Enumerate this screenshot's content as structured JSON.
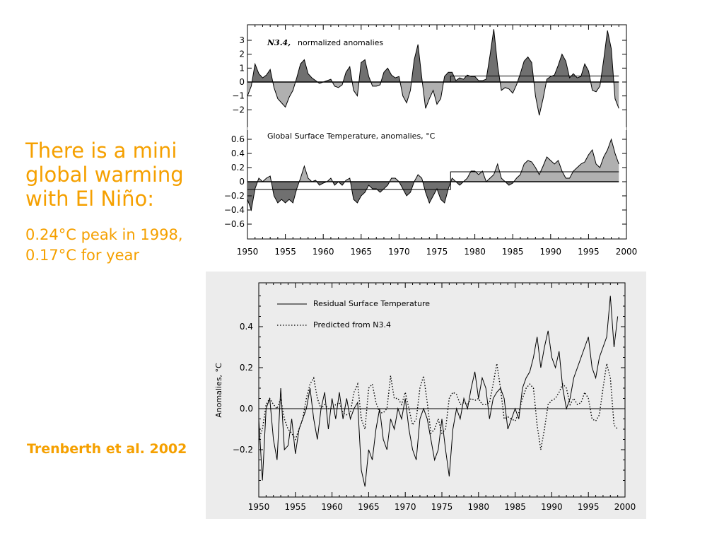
{
  "slide": {
    "headline_lines": [
      "There is a mini",
      "global warming",
      "with El Niño:"
    ],
    "stats_lines": [
      "0.24°C peak in 1998,",
      "0.17°C for year"
    ],
    "citation": "Trenberth et al. 2002",
    "accent_color": "#f5a000"
  },
  "chart_data": [
    {
      "type": "area",
      "title_italic": "N3.4,",
      "title": "normalized anomalies",
      "xlim": [
        1950,
        2000
      ],
      "ylim": [
        -3,
        4
      ],
      "x_ticks": [
        "1950",
        "1955",
        "1960",
        "1965",
        "1970",
        "1975",
        "1980",
        "1985",
        "1990",
        "1995",
        "2000"
      ],
      "y_ticks": [
        "3",
        "2",
        "1",
        "0",
        "−1",
        "−2"
      ],
      "y_tick_values": [
        3,
        2,
        1,
        0,
        -1,
        -2
      ],
      "positive_color": "#707070",
      "negative_color": "#b0b0b0",
      "step_mean": [
        [
          1950,
          0
        ],
        [
          2000,
          0.43
        ]
      ],
      "series": [
        {
          "x": [
            1950,
            1950.5,
            1951,
            1951.5,
            1952,
            1952.5,
            1953,
            1953.5,
            1954,
            1954.5,
            1955,
            1955.5,
            1956,
            1956.5,
            1957,
            1957.5,
            1958,
            1958.5,
            1959,
            1959.5,
            1960,
            1960.5,
            1961,
            1961.5,
            1962,
            1962.5,
            1963,
            1963.5,
            1964,
            1964.5,
            1965,
            1965.5,
            1966,
            1966.5,
            1967,
            1967.5,
            1968,
            1968.5,
            1969,
            1969.5,
            1970,
            1970.5,
            1971,
            1971.5,
            1972,
            1972.5,
            1973,
            1973.5,
            1974,
            1974.5,
            1975,
            1975.5,
            1976,
            1976.5,
            1977,
            1977.5,
            1978,
            1978.5,
            1979,
            1979.5,
            1980,
            1980.5,
            1981,
            1981.5,
            1982,
            1982.5,
            1983,
            1983.5,
            1984,
            1984.5,
            1985,
            1985.5,
            1986,
            1986.5,
            1987,
            1987.5,
            1988,
            1988.5,
            1989,
            1989.5,
            1990,
            1990.5,
            1991,
            1991.5,
            1992,
            1992.5,
            1993,
            1993.5,
            1994,
            1994.5,
            1995,
            1995.5,
            1996,
            1996.5,
            1997,
            1997.5,
            1998,
            1998.5,
            1999
          ],
          "y": [
            -1.0,
            -0.3,
            1.3,
            0.6,
            0.3,
            0.5,
            0.9,
            -0.4,
            -1.2,
            -1.5,
            -1.8,
            -1.1,
            -0.6,
            0.3,
            1.3,
            1.6,
            0.6,
            0.3,
            0.1,
            -0.1,
            0.0,
            0.1,
            0.2,
            -0.3,
            -0.4,
            -0.2,
            0.7,
            1.1,
            -0.6,
            -1.0,
            1.4,
            1.6,
            0.4,
            -0.3,
            -0.3,
            -0.2,
            0.7,
            1.0,
            0.5,
            0.3,
            0.4,
            -1.0,
            -1.5,
            -0.6,
            1.6,
            2.7,
            0.3,
            -1.9,
            -1.2,
            -0.6,
            -1.6,
            -1.2,
            0.4,
            0.7,
            0.7,
            0.1,
            0.3,
            0.2,
            0.5,
            0.4,
            0.4,
            0.1,
            0.1,
            0.2,
            1.9,
            3.8,
            1.2,
            -0.6,
            -0.4,
            -0.5,
            -0.8,
            -0.2,
            0.6,
            1.5,
            1.8,
            1.4,
            -1.0,
            -2.4,
            -1.2,
            0.2,
            0.4,
            0.5,
            1.2,
            2.0,
            1.5,
            0.3,
            0.6,
            0.3,
            0.4,
            1.3,
            0.8,
            -0.6,
            -0.7,
            -0.3,
            1.6,
            3.7,
            2.4,
            -1.2,
            -1.9
          ]
        }
      ]
    },
    {
      "type": "area",
      "title": "Global Surface Temperature, anomalies, °C",
      "xlim": [
        1950,
        2000
      ],
      "ylim": [
        -0.7,
        0.7
      ],
      "y_ticks": [
        "0.6",
        "0.4",
        "0.2",
        "0",
        "−0.2",
        "−0.4",
        "−0.6"
      ],
      "y_tick_values": [
        0.6,
        0.4,
        0.2,
        0,
        -0.2,
        -0.4,
        -0.6
      ],
      "positive_color": "#b0b0b0",
      "negative_color": "#707070",
      "step_mean": [
        [
          1950,
          -0.11
        ],
        [
          1976.8,
          0.14
        ],
        [
          2000,
          0.14
        ]
      ],
      "series": [
        {
          "x": [
            1950,
            1950.5,
            1951,
            1951.5,
            1952,
            1952.5,
            1953,
            1953.5,
            1954,
            1954.5,
            1955,
            1955.5,
            1956,
            1956.5,
            1957,
            1957.5,
            1958,
            1958.5,
            1959,
            1959.5,
            1960,
            1960.5,
            1961,
            1961.5,
            1962,
            1962.5,
            1963,
            1963.5,
            1964,
            1964.5,
            1965,
            1965.5,
            1966,
            1966.5,
            1967,
            1967.5,
            1968,
            1968.5,
            1969,
            1969.5,
            1970,
            1970.5,
            1971,
            1971.5,
            1972,
            1972.5,
            1973,
            1973.5,
            1974,
            1974.5,
            1975,
            1975.5,
            1976,
            1976.5,
            1977,
            1977.5,
            1978,
            1978.5,
            1979,
            1979.5,
            1980,
            1980.5,
            1981,
            1981.5,
            1982,
            1982.5,
            1983,
            1983.5,
            1984,
            1984.5,
            1985,
            1985.5,
            1986,
            1986.5,
            1987,
            1987.5,
            1988,
            1988.5,
            1989,
            1989.5,
            1990,
            1990.5,
            1991,
            1991.5,
            1992,
            1992.5,
            1993,
            1993.5,
            1994,
            1994.5,
            1995,
            1995.5,
            1996,
            1996.5,
            1997,
            1997.5,
            1998,
            1998.5,
            1999
          ],
          "y": [
            -0.25,
            -0.4,
            -0.1,
            0.05,
            0.0,
            0.05,
            0.08,
            -0.2,
            -0.3,
            -0.25,
            -0.3,
            -0.25,
            -0.3,
            -0.1,
            0.05,
            0.22,
            0.05,
            0.0,
            0.02,
            -0.05,
            -0.02,
            0.0,
            0.05,
            -0.05,
            0.0,
            -0.05,
            0.02,
            0.05,
            -0.25,
            -0.3,
            -0.2,
            -0.15,
            -0.05,
            -0.1,
            -0.1,
            -0.15,
            -0.1,
            -0.05,
            0.05,
            0.05,
            0.0,
            -0.1,
            -0.2,
            -0.15,
            0.0,
            0.1,
            0.05,
            -0.15,
            -0.3,
            -0.2,
            -0.1,
            -0.25,
            -0.3,
            -0.1,
            0.05,
            0.0,
            -0.05,
            0.0,
            0.05,
            0.15,
            0.15,
            0.1,
            0.15,
            0.0,
            0.05,
            0.1,
            0.25,
            0.05,
            0.0,
            -0.05,
            -0.02,
            0.05,
            0.1,
            0.25,
            0.3,
            0.28,
            0.2,
            0.1,
            0.22,
            0.35,
            0.3,
            0.25,
            0.3,
            0.15,
            0.05,
            0.05,
            0.15,
            0.2,
            0.25,
            0.28,
            0.38,
            0.45,
            0.25,
            0.2,
            0.35,
            0.45,
            0.6,
            0.4,
            0.25
          ]
        }
      ]
    },
    {
      "type": "line",
      "xlim": [
        1950,
        2000
      ],
      "ylim": [
        -0.4,
        0.6
      ],
      "ylabel": "Anomalies, °C",
      "x_ticks": [
        "1950",
        "1955",
        "1960",
        "1965",
        "1970",
        "1975",
        "1980",
        "1985",
        "1990",
        "1995",
        "2000"
      ],
      "y_ticks": [
        "0.4",
        "0.2",
        "0.0",
        "−0.2"
      ],
      "y_tick_values": [
        0.4,
        0.2,
        0.0,
        -0.2
      ],
      "background_color": "#ececec",
      "legend": {
        "placement": "top-left"
      },
      "series": [
        {
          "name": "Residual Surface Temperature",
          "style": "solid",
          "x": [
            1950,
            1950.5,
            1951,
            1951.5,
            1952,
            1952.5,
            1953,
            1953.5,
            1954,
            1954.5,
            1955,
            1955.5,
            1956,
            1956.5,
            1957,
            1957.5,
            1958,
            1958.5,
            1959,
            1959.5,
            1960,
            1960.5,
            1961,
            1961.5,
            1962,
            1962.5,
            1963,
            1963.5,
            1964,
            1964.5,
            1965,
            1965.5,
            1966,
            1966.5,
            1967,
            1967.5,
            1968,
            1968.5,
            1969,
            1969.5,
            1970,
            1970.5,
            1971,
            1971.5,
            1972,
            1972.5,
            1973,
            1973.5,
            1974,
            1974.5,
            1975,
            1975.5,
            1976,
            1976.5,
            1977,
            1977.5,
            1978,
            1978.5,
            1979,
            1979.5,
            1980,
            1980.5,
            1981,
            1981.5,
            1982,
            1982.5,
            1983,
            1983.5,
            1984,
            1984.5,
            1985,
            1985.5,
            1986,
            1986.5,
            1987,
            1987.5,
            1988,
            1988.5,
            1989,
            1989.5,
            1990,
            1990.5,
            1991,
            1991.5,
            1992,
            1992.5,
            1993,
            1993.5,
            1994,
            1994.5,
            1995,
            1995.5,
            1996,
            1996.5,
            1997,
            1997.5,
            1998,
            1998.5,
            1999
          ],
          "y": [
            -0.05,
            -0.35,
            0.0,
            0.05,
            -0.15,
            -0.25,
            0.1,
            -0.2,
            -0.18,
            -0.05,
            -0.22,
            -0.1,
            -0.05,
            0.0,
            0.1,
            -0.05,
            -0.15,
            0.0,
            0.08,
            -0.1,
            0.05,
            -0.05,
            0.08,
            -0.05,
            0.05,
            -0.05,
            0.0,
            0.03,
            -0.3,
            -0.38,
            -0.2,
            -0.25,
            -0.1,
            0.0,
            -0.15,
            -0.2,
            -0.05,
            -0.1,
            0.0,
            -0.05,
            0.05,
            -0.1,
            -0.2,
            -0.25,
            -0.05,
            0.0,
            -0.05,
            -0.15,
            -0.25,
            -0.2,
            -0.05,
            -0.2,
            -0.33,
            -0.1,
            0.0,
            -0.05,
            0.05,
            0.0,
            0.1,
            0.18,
            0.05,
            0.15,
            0.1,
            -0.05,
            0.05,
            0.08,
            0.1,
            0.05,
            -0.1,
            -0.05,
            0.0,
            -0.05,
            0.1,
            0.15,
            0.18,
            0.25,
            0.35,
            0.2,
            0.3,
            0.38,
            0.25,
            0.2,
            0.28,
            0.1,
            0.0,
            0.05,
            0.15,
            0.2,
            0.25,
            0.3,
            0.35,
            0.2,
            0.15,
            0.25,
            0.3,
            0.35,
            0.55,
            0.3,
            0.45
          ]
        },
        {
          "name": "Predicted from N3.4",
          "style": "dotted",
          "x": [
            1950,
            1950.5,
            1951,
            1951.5,
            1952,
            1952.5,
            1953,
            1953.5,
            1954,
            1954.5,
            1955,
            1955.5,
            1956,
            1956.5,
            1957,
            1957.5,
            1958,
            1958.5,
            1959,
            1959.5,
            1960,
            1960.5,
            1961,
            1961.5,
            1962,
            1962.5,
            1963,
            1963.5,
            1964,
            1964.5,
            1965,
            1965.5,
            1966,
            1966.5,
            1967,
            1967.5,
            1968,
            1968.5,
            1969,
            1969.5,
            1970,
            1970.5,
            1971,
            1971.5,
            1972,
            1972.5,
            1973,
            1973.5,
            1974,
            1974.5,
            1975,
            1975.5,
            1976,
            1976.5,
            1977,
            1977.5,
            1978,
            1978.5,
            1979,
            1979.5,
            1980,
            1980.5,
            1981,
            1981.5,
            1982,
            1982.5,
            1983,
            1983.5,
            1984,
            1984.5,
            1985,
            1985.5,
            1986,
            1986.5,
            1987,
            1987.5,
            1988,
            1988.5,
            1989,
            1989.5,
            1990,
            1990.5,
            1991,
            1991.5,
            1992,
            1992.5,
            1993,
            1993.5,
            1994,
            1994.5,
            1995,
            1995.5,
            1996,
            1996.5,
            1997,
            1997.5,
            1998,
            1998.5,
            1999
          ],
          "y": [
            -0.15,
            -0.1,
            0.02,
            0.05,
            0.02,
            0.0,
            0.05,
            -0.05,
            -0.1,
            -0.12,
            -0.15,
            -0.1,
            -0.05,
            0.05,
            0.12,
            0.15,
            0.05,
            0.0,
            0.02,
            0.0,
            0.0,
            0.02,
            0.03,
            -0.02,
            -0.03,
            -0.02,
            0.08,
            0.12,
            -0.05,
            -0.1,
            0.1,
            0.12,
            0.03,
            -0.02,
            -0.02,
            0.0,
            0.16,
            0.05,
            0.05,
            0.02,
            0.08,
            0.0,
            -0.08,
            -0.05,
            0.1,
            0.16,
            0.03,
            -0.12,
            -0.1,
            -0.05,
            -0.12,
            -0.1,
            0.05,
            0.08,
            0.07,
            0.02,
            0.03,
            0.02,
            0.05,
            0.04,
            0.05,
            0.02,
            0.02,
            0.03,
            0.12,
            0.22,
            0.1,
            -0.05,
            -0.04,
            -0.05,
            -0.06,
            -0.02,
            0.05,
            0.1,
            0.12,
            0.1,
            -0.08,
            -0.2,
            -0.1,
            0.02,
            0.04,
            0.05,
            0.08,
            0.12,
            0.1,
            0.02,
            0.05,
            0.02,
            0.03,
            0.08,
            0.05,
            -0.05,
            -0.06,
            -0.03,
            0.1,
            0.22,
            0.15,
            -0.08,
            -0.1
          ]
        }
      ]
    }
  ]
}
